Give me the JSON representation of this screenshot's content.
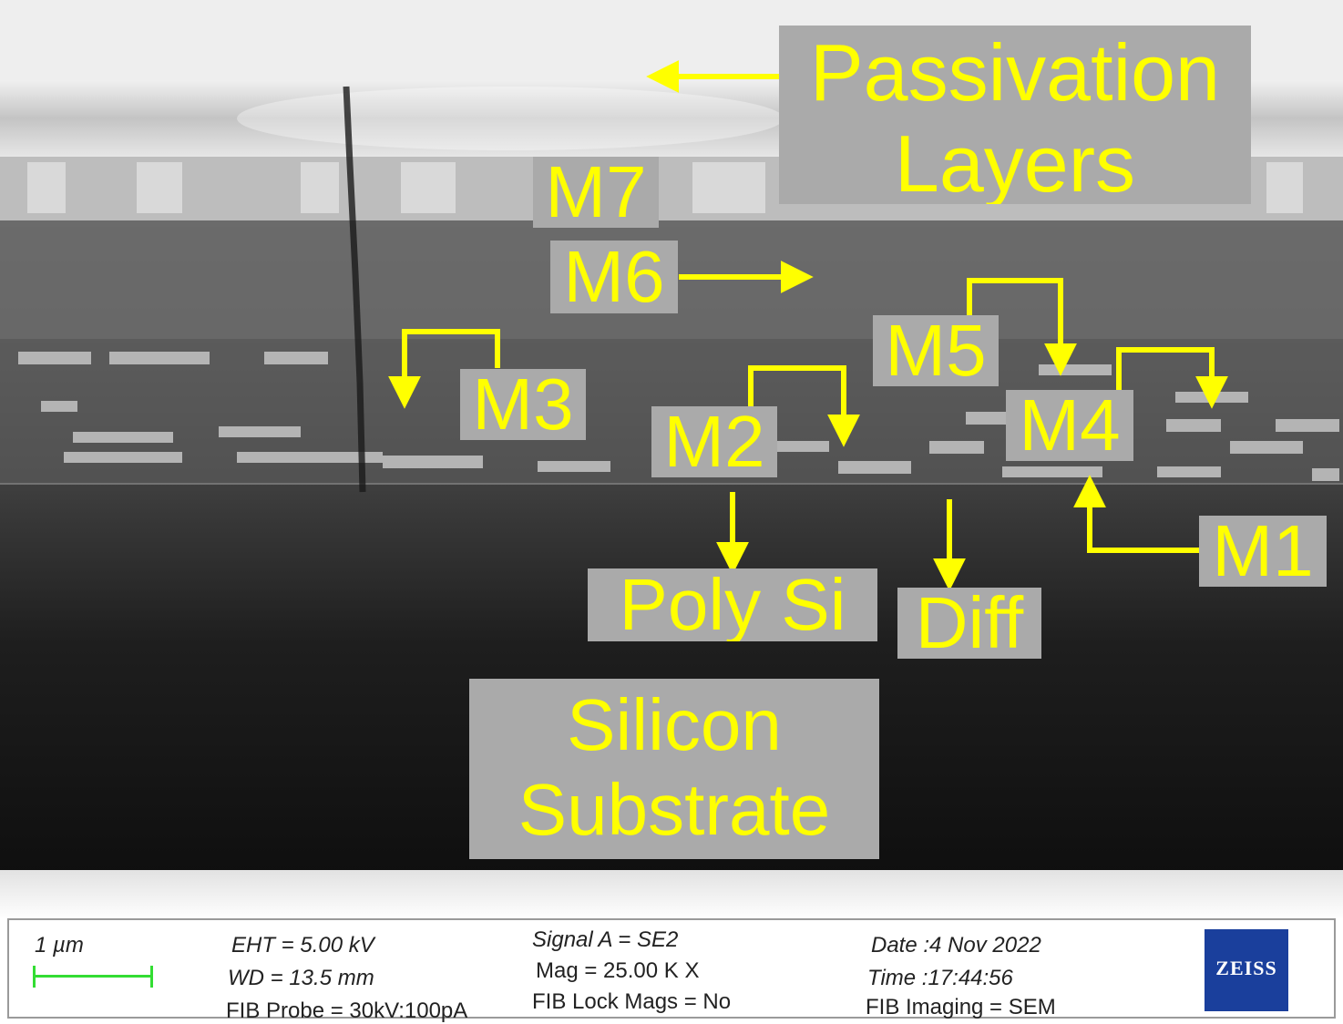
{
  "labels": {
    "passivation": [
      "Passivation",
      "Layers"
    ],
    "m7": "M7",
    "m6": "M6",
    "m5": "M5",
    "m4": "M4",
    "m3": "M3",
    "m2": "M2",
    "m1": "M1",
    "poly_si": "Poly Si",
    "diff": "Diff",
    "substrate": [
      "Silicon",
      "Substrate"
    ]
  },
  "databar": {
    "scale": "1 µm",
    "eht": "EHT =  5.00 kV",
    "wd": "WD = 13.5 mm",
    "fib_probe": "FIB Probe = 30kV:100pA",
    "signal": "Signal A = SE2",
    "mag": "Mag =   25.00 K X",
    "fib_lock": "FIB Lock Mags = No",
    "date": "Date :4 Nov 2022",
    "time": "Time :17:44:56",
    "fib_imaging": "FIB Imaging = SEM",
    "logo": "ZEISS"
  },
  "colors": {
    "label_text": "#ffff00",
    "label_bg": "#aaaaaa",
    "arrow": "#ffff00",
    "scale_bar": "#33dd33",
    "logo_bg": "#1a3f9c"
  }
}
